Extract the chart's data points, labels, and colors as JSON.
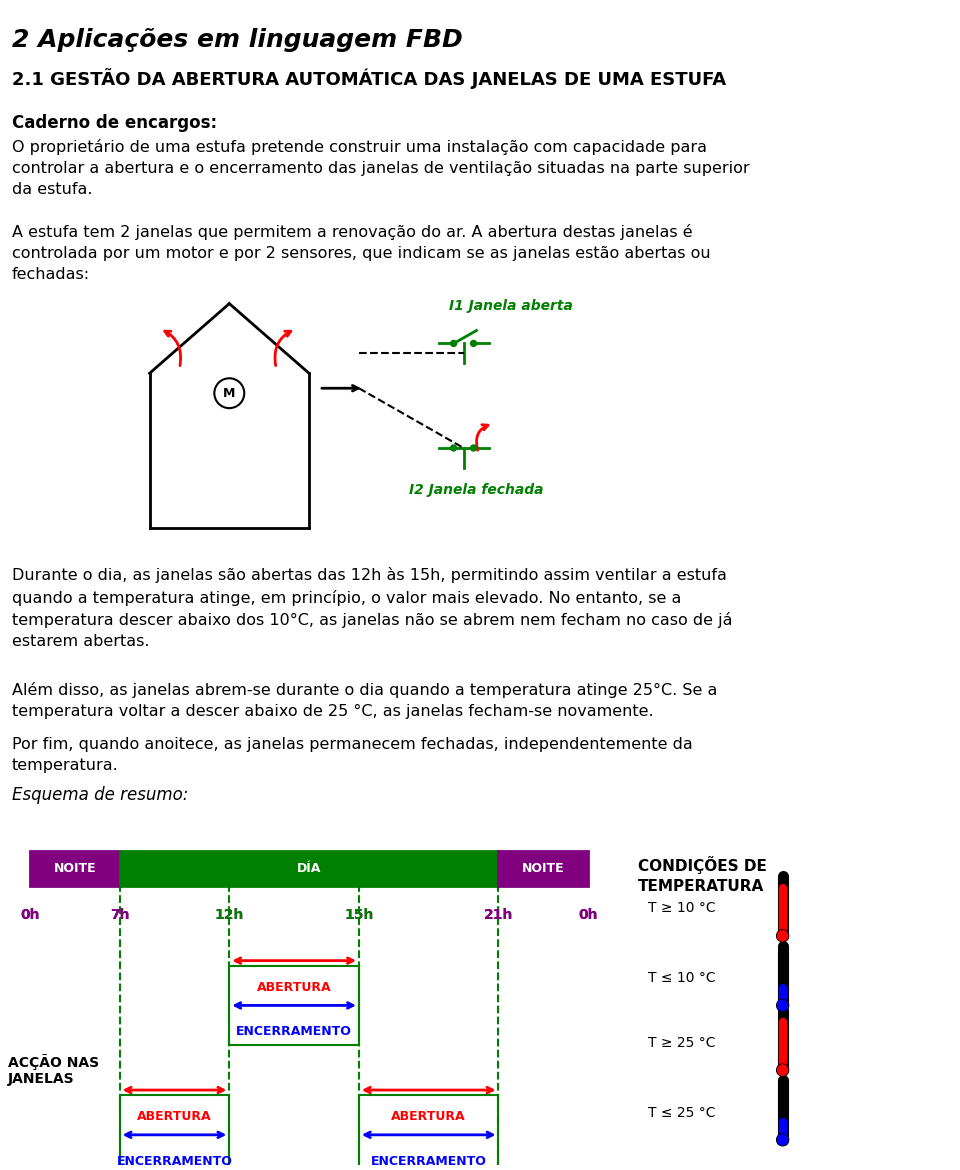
{
  "title": "2 Aplicações em linguagem FBD",
  "subtitle": "2.1 GESTÃO DA ABERTURA AUTOMÁTICA DAS JANELAS DE UMA ESTUFA",
  "section_bold": "Caderno de encargos:",
  "para1": "O proprietário de uma estufa pretende construir uma instalação com capacidade para\ncontrolar a abertura e o encerramento das janelas de ventilação situadas na parte superior\nda estufa.",
  "para2": "A estufa tem 2 janelas que permitem a renovação do ar. A abertura destas janelas é\ncontrolada por um motor e por 2 sensores, que indicam se as janelas estão abertas ou\nfechadas:",
  "para3": "Durante o dia, as janelas são abertas das 12h às 15h, permitindo assim ventilar a estufa\nquando a temperatura atinge, em princípio, o valor mais elevado. No entanto, se a\ntemperatura descer abaixo dos 10°C, as janelas não se abrem nem fecham no caso de já\nestarem abertas.",
  "para4": "Além disso, as janelas abrem-se durante o dia quando a temperatura atinge 25°C. Se a\ntemperatura voltar a descer abaixo de 25 °C, as janelas fecham-se novamente.",
  "para5": "Por fim, quando anoitece, as janelas permanecem fechadas, independentemente da\ntemperatura.",
  "esquema": "Esquema de resumo:",
  "bg_color": "#ffffff",
  "text_color": "#000000",
  "purple": "#800080",
  "green": "#008000",
  "red": "#cc0000",
  "blue": "#0000cc"
}
